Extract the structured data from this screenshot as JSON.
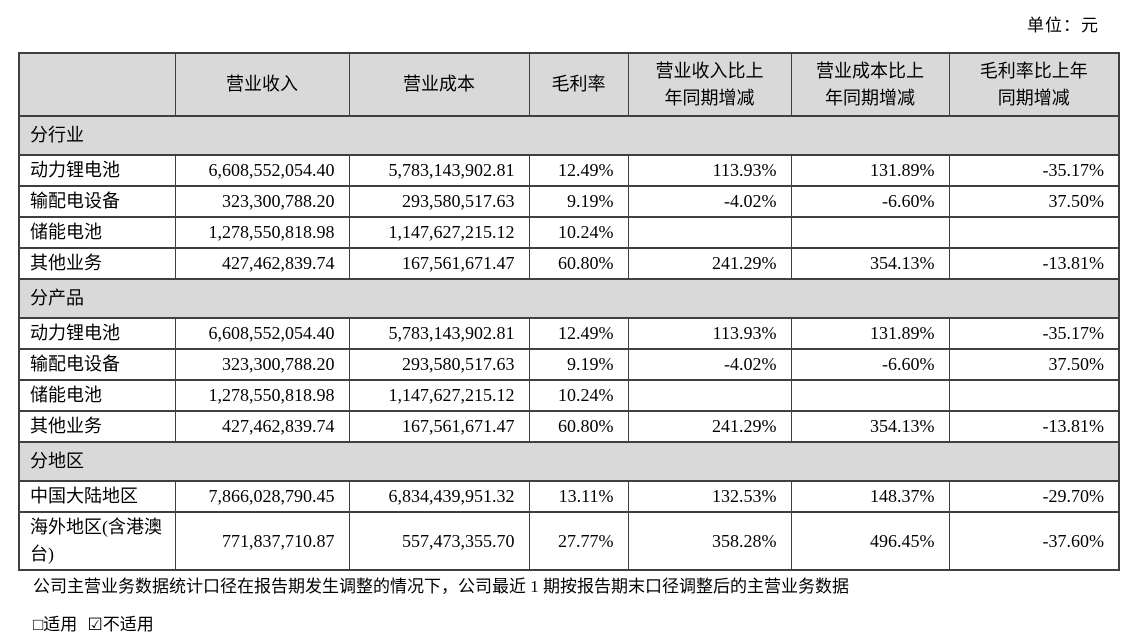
{
  "unit_label": "单位：元",
  "table": {
    "columns": [
      "",
      "营业收入",
      "营业成本",
      "毛利率",
      "营业收入比上\n年同期增减",
      "营业成本比上\n年同期增减",
      "毛利率比上年\n同期增减"
    ],
    "sections": [
      {
        "label": "分行业",
        "rows": [
          {
            "name": "动力锂电池",
            "revenue": "6,608,552,054.40",
            "cost": "5,783,143,902.81",
            "margin": "12.49%",
            "revenue_change": "113.93%",
            "cost_change": "131.89%",
            "margin_change": "-35.17%"
          },
          {
            "name": "输配电设备",
            "revenue": "323,300,788.20",
            "cost": "293,580,517.63",
            "margin": "9.19%",
            "revenue_change": "-4.02%",
            "cost_change": "-6.60%",
            "margin_change": "37.50%"
          },
          {
            "name": "储能电池",
            "revenue": "1,278,550,818.98",
            "cost": "1,147,627,215.12",
            "margin": "10.24%",
            "revenue_change": "",
            "cost_change": "",
            "margin_change": ""
          },
          {
            "name": "其他业务",
            "revenue": "427,462,839.74",
            "cost": "167,561,671.47",
            "margin": "60.80%",
            "revenue_change": "241.29%",
            "cost_change": "354.13%",
            "margin_change": "-13.81%"
          }
        ]
      },
      {
        "label": "分产品",
        "rows": [
          {
            "name": "动力锂电池",
            "revenue": "6,608,552,054.40",
            "cost": "5,783,143,902.81",
            "margin": "12.49%",
            "revenue_change": "113.93%",
            "cost_change": "131.89%",
            "margin_change": "-35.17%"
          },
          {
            "name": "输配电设备",
            "revenue": "323,300,788.20",
            "cost": "293,580,517.63",
            "margin": "9.19%",
            "revenue_change": "-4.02%",
            "cost_change": "-6.60%",
            "margin_change": "37.50%"
          },
          {
            "name": "储能电池",
            "revenue": "1,278,550,818.98",
            "cost": "1,147,627,215.12",
            "margin": "10.24%",
            "revenue_change": "",
            "cost_change": "",
            "margin_change": ""
          },
          {
            "name": "其他业务",
            "revenue": "427,462,839.74",
            "cost": "167,561,671.47",
            "margin": "60.80%",
            "revenue_change": "241.29%",
            "cost_change": "354.13%",
            "margin_change": "-13.81%"
          }
        ]
      },
      {
        "label": "分地区",
        "rows": [
          {
            "name": "中国大陆地区",
            "revenue": "7,866,028,790.45",
            "cost": "6,834,439,951.32",
            "margin": "13.11%",
            "revenue_change": "132.53%",
            "cost_change": "148.37%",
            "margin_change": "-29.70%"
          },
          {
            "name": "海外地区(含港澳台)",
            "revenue": "771,837,710.87",
            "cost": "557,473,355.70",
            "margin": "27.77%",
            "revenue_change": "358.28%",
            "cost_change": "496.45%",
            "margin_change": "-37.60%"
          }
        ]
      }
    ]
  },
  "footnote": "公司主营业务数据统计口径在报告期发生调整的情况下，公司最近 1 期按报告期末口径调整后的主营业务数据",
  "applicability": {
    "applicable": "□适用",
    "not_applicable": "☑不适用"
  }
}
